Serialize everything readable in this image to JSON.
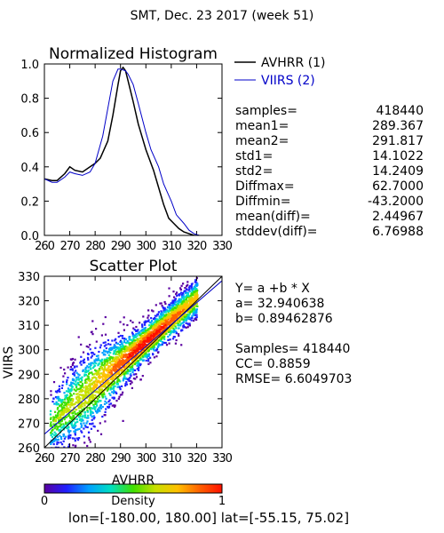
{
  "page_title": "SMT,  Dec. 23 2017 (week 51)",
  "chart_data": [
    {
      "type": "line",
      "title": "Normalized Histogram",
      "xlim": [
        260,
        330
      ],
      "ylim": [
        0.0,
        1.0
      ],
      "x_tick_labels": [
        "260",
        "270",
        "280",
        "290",
        "300",
        "310",
        "320",
        "330"
      ],
      "y_tick_labels": [
        "0.0",
        "0.2",
        "0.4",
        "0.6",
        "0.8",
        "1.0"
      ],
      "legend_position": "right",
      "series": [
        {
          "name": "AVHRR (1)",
          "color": "#000000",
          "x": [
            260,
            263,
            265,
            268,
            270,
            272,
            275,
            278,
            280,
            282,
            285,
            287,
            289,
            290,
            291,
            292,
            293,
            295,
            297,
            300,
            303,
            305,
            307,
            309,
            311,
            313,
            315,
            317,
            319,
            321
          ],
          "y": [
            0.33,
            0.32,
            0.32,
            0.36,
            0.4,
            0.38,
            0.37,
            0.4,
            0.42,
            0.45,
            0.55,
            0.7,
            0.88,
            0.96,
            0.98,
            0.96,
            0.9,
            0.78,
            0.65,
            0.5,
            0.38,
            0.28,
            0.18,
            0.1,
            0.07,
            0.04,
            0.02,
            0.01,
            0.0,
            0.0
          ]
        },
        {
          "name": "VIIRS (2)",
          "color": "#0000c8",
          "x": [
            260,
            263,
            265,
            268,
            270,
            272,
            275,
            278,
            280,
            283,
            285,
            287,
            289,
            290,
            292,
            293,
            295,
            297,
            300,
            302,
            305,
            307,
            310,
            312,
            315,
            317,
            319,
            321,
            323
          ],
          "y": [
            0.33,
            0.31,
            0.31,
            0.34,
            0.37,
            0.36,
            0.35,
            0.37,
            0.42,
            0.58,
            0.74,
            0.9,
            0.97,
            0.97,
            0.96,
            0.94,
            0.88,
            0.77,
            0.6,
            0.5,
            0.4,
            0.3,
            0.2,
            0.12,
            0.07,
            0.03,
            0.01,
            0.0,
            0.0
          ]
        }
      ]
    },
    {
      "type": "scatter",
      "title": "Scatter Plot",
      "xlabel": "AVHRR",
      "ylabel": "VIIRS",
      "xlim": [
        260,
        330
      ],
      "ylim": [
        260,
        330
      ],
      "x_tick_labels": [
        "260",
        "270",
        "280",
        "290",
        "300",
        "310",
        "320",
        "330"
      ],
      "y_tick_labels": [
        "260",
        "270",
        "280",
        "290",
        "300",
        "310",
        "320",
        "330"
      ],
      "fit_line": {
        "intercept": 32.940638,
        "slope": 0.89462876,
        "color": "#0000c8"
      },
      "one_to_one_line": {
        "color": "#000000"
      },
      "density_colorbar": {
        "label": "Density",
        "min_label": "0",
        "max_label": "1",
        "colors": [
          "#5a00a0",
          "#2020ff",
          "#00a0ff",
          "#00e0c0",
          "#40e000",
          "#c8e000",
          "#ffc000",
          "#ff6000",
          "#ff1000"
        ]
      }
    }
  ],
  "stats": {
    "labels": [
      "samples=",
      "mean1=",
      "mean2=",
      "std1=",
      "std2=",
      "Diffmax=",
      "Diffmin=",
      "mean(diff)=",
      "stddev(diff)="
    ],
    "values": [
      "418440",
      "289.367",
      "291.817",
      "14.1022",
      "14.2409",
      "62.7000",
      "-43.2000",
      "2.44967",
      "6.76988"
    ]
  },
  "regression": {
    "equation": "Y= a +b * X",
    "a_line": "a= 32.940638",
    "b_line": "b= 0.89462876",
    "samples_line": "Samples= 418440",
    "cc_line": "CC=  0.8859",
    "rmse_line": "RMSE= 6.6049703"
  },
  "footer": "lon=[-180.00, 180.00] lat=[-55.15, 75.02]"
}
